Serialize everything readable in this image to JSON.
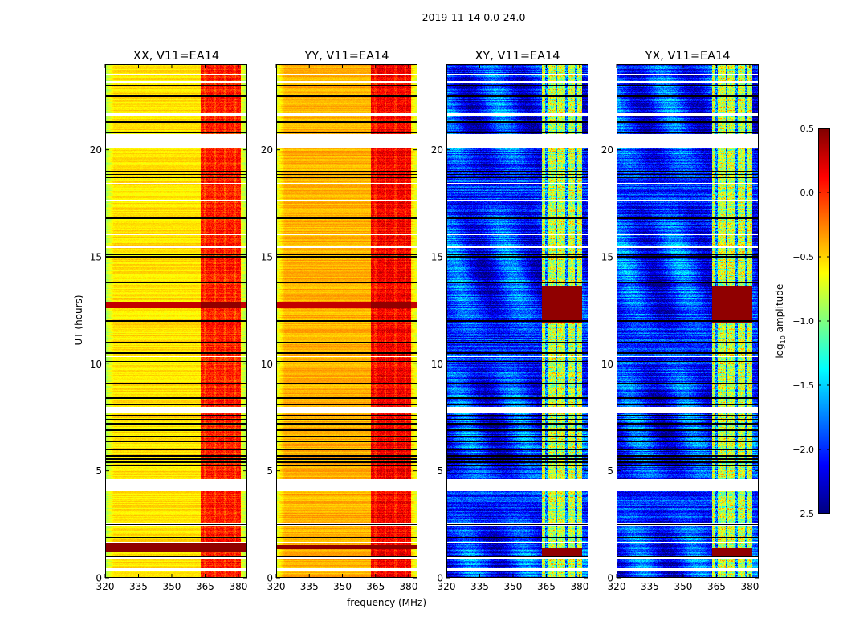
{
  "figure_title": "2019-11-14 0.0-24.0",
  "chart_data": {
    "type": "heatmap",
    "title": "2019-11-14 0.0-24.0",
    "xlabel": "frequency (MHz)",
    "ylabel": "UT (hours)",
    "xlim": [
      320,
      384
    ],
    "ylim": [
      0,
      24
    ],
    "xticks": [
      320,
      335,
      350,
      365,
      380
    ],
    "yticks": [
      0,
      5,
      10,
      15,
      20
    ],
    "colormap": "jet",
    "colorbar": {
      "label_main": "log",
      "label_sub": "10",
      "label_rest": " amplitude",
      "range": [
        -2.5,
        0.5
      ],
      "ticks": [
        "0.5",
        "0.0",
        "−0.5",
        "−1.0",
        "−1.5",
        "−2.0",
        "−2.5"
      ],
      "tick_values": [
        0.5,
        0.0,
        -0.5,
        -1.0,
        -1.5,
        -2.0,
        -2.5
      ]
    },
    "panels": [
      {
        "title": "XX, V11=EA14",
        "base_level": -0.55,
        "band_level": 0.05,
        "edge_drop": -0.35,
        "strong_rows": [
          [
            1.2,
            1.6
          ],
          [
            12.6,
            12.9
          ]
        ]
      },
      {
        "title": "YY, V11=EA14",
        "base_level": -0.4,
        "band_level": 0.15,
        "edge_drop": -0.35,
        "strong_rows": [
          [
            1.35,
            1.55
          ],
          [
            12.6,
            12.9
          ]
        ]
      },
      {
        "title": "XY, V11=EA14",
        "base_level": -2.0,
        "band_level": -0.8,
        "edge_drop": 0,
        "strong_rows": [
          [
            0.9,
            1.4
          ],
          [
            11.9,
            13.6
          ]
        ]
      },
      {
        "title": "YX, V11=EA14",
        "base_level": -2.0,
        "band_level": -0.8,
        "edge_drop": 0,
        "strong_rows": [
          [
            0.9,
            1.4
          ],
          [
            11.9,
            13.6
          ]
        ]
      }
    ],
    "rfi_band_mhz": [
      363,
      381
    ],
    "rfi_channel_lines_mhz": [
      365,
      369.5,
      374,
      378.5
    ],
    "flagged_hours": [
      [
        0.35,
        0.45
      ],
      [
        0.9,
        1.0
      ],
      [
        1.6,
        1.65
      ],
      [
        2.45,
        2.55
      ],
      [
        4.05,
        4.6
      ],
      [
        7.7,
        8.0
      ],
      [
        9.6,
        9.65
      ],
      [
        10.3,
        10.35
      ],
      [
        15.4,
        15.5
      ],
      [
        16.0,
        16.05
      ],
      [
        17.6,
        17.65
      ],
      [
        18.4,
        18.45
      ],
      [
        20.1,
        20.75
      ],
      [
        21.6,
        21.7
      ],
      [
        22.3,
        22.35
      ],
      [
        23.1,
        23.2
      ],
      [
        23.5,
        23.55
      ]
    ],
    "black_row_hours": [
      1.0,
      1.9,
      2.5,
      5.25,
      5.4,
      5.55,
      5.7,
      6.0,
      6.35,
      6.6,
      6.9,
      7.2,
      7.4,
      7.6,
      8.1,
      8.4,
      9.1,
      10.1,
      10.5,
      11.0,
      12.0,
      13.8,
      15.0,
      15.1,
      16.8,
      17.8,
      18.7,
      18.85,
      19.0,
      20.8,
      21.2,
      21.3,
      22.5,
      23.0
    ]
  }
}
